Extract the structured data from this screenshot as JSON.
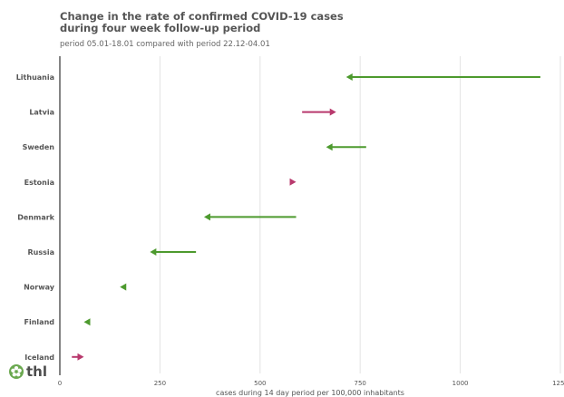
{
  "title_line1": "Change in the rate of confirmed COVID-19 cases",
  "title_line2": "during four week follow-up period",
  "subtitle": "period 05.01-18.01 compared with period 22.12-04.01",
  "logo_text": "thl",
  "colors": {
    "decrease": "#4d9a2e",
    "increase": "#b8396d",
    "axis": "#333333",
    "grid": "#e3e3e3",
    "text": "#555555"
  },
  "chart_data": {
    "type": "arrow",
    "xlabel": "cases during 14 day period per 100,000 inhabitants",
    "xlim": [
      0,
      1250
    ],
    "xticks": [
      0,
      250,
      500,
      750,
      1000,
      1250
    ],
    "xtick_labels": [
      "0",
      "250",
      "500",
      "750",
      "1000",
      "1250"
    ],
    "grid": true,
    "series": [
      {
        "country": "Lithuania",
        "from": 1200,
        "to": 715
      },
      {
        "country": "Latvia",
        "from": 605,
        "to": 690
      },
      {
        "country": "Sweden",
        "from": 765,
        "to": 665
      },
      {
        "country": "Estonia",
        "from": 580,
        "to": 590
      },
      {
        "country": "Denmark",
        "from": 590,
        "to": 360
      },
      {
        "country": "Russia",
        "from": 340,
        "to": 225
      },
      {
        "country": "Norway",
        "from": 160,
        "to": 150
      },
      {
        "country": "Finland",
        "from": 70,
        "to": 60
      },
      {
        "country": "Iceland",
        "from": 30,
        "to": 60
      }
    ]
  }
}
